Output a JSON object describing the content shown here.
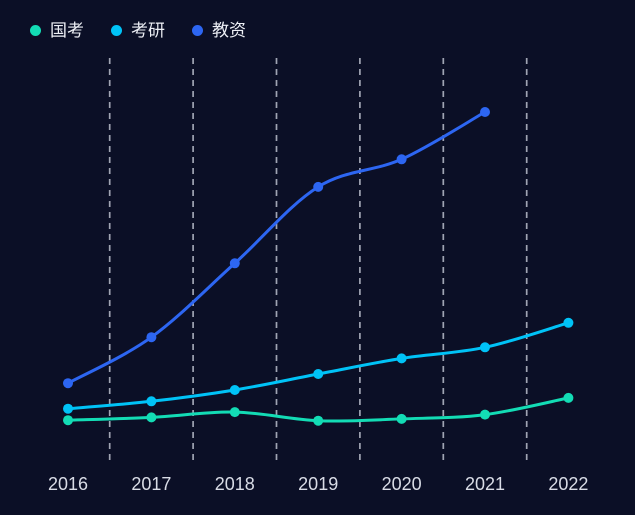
{
  "page": {
    "background": "#0b0f26"
  },
  "legend": {
    "position": "top-left",
    "items": [
      {
        "label": "国考",
        "color": "#13dcb5"
      },
      {
        "label": "考研",
        "color": "#00c3f7"
      },
      {
        "label": "教资",
        "color": "#2d66f2"
      }
    ]
  },
  "chart_data": {
    "type": "line",
    "smooth": true,
    "title": "",
    "xlabel": "",
    "ylabel": "",
    "categories": [
      "2016",
      "2017",
      "2018",
      "2019",
      "2020",
      "2021",
      "2022"
    ],
    "series": [
      {
        "name": "国考",
        "color": "#13dcb5",
        "values": [
          139.5,
          148.6,
          166,
          137.9,
          143.7,
          157.6,
          212.3
        ]
      },
      {
        "name": "考研",
        "color": "#00c3f7",
        "values": [
          177,
          201,
          238,
          290,
          341,
          377,
          457
        ]
      },
      {
        "name": "教资",
        "color": "#2d66f2",
        "values": [
          260,
          410,
          651,
          900,
          990,
          1144,
          null
        ]
      }
    ],
    "ylim": [
      0,
      1320
    ],
    "y_axis": "hidden",
    "grid": "vertical dashed gridlines between categories",
    "gridline_color": "#a9adbb",
    "x_tick_label_color": "#d9dce6",
    "legend_position": "top-left"
  }
}
